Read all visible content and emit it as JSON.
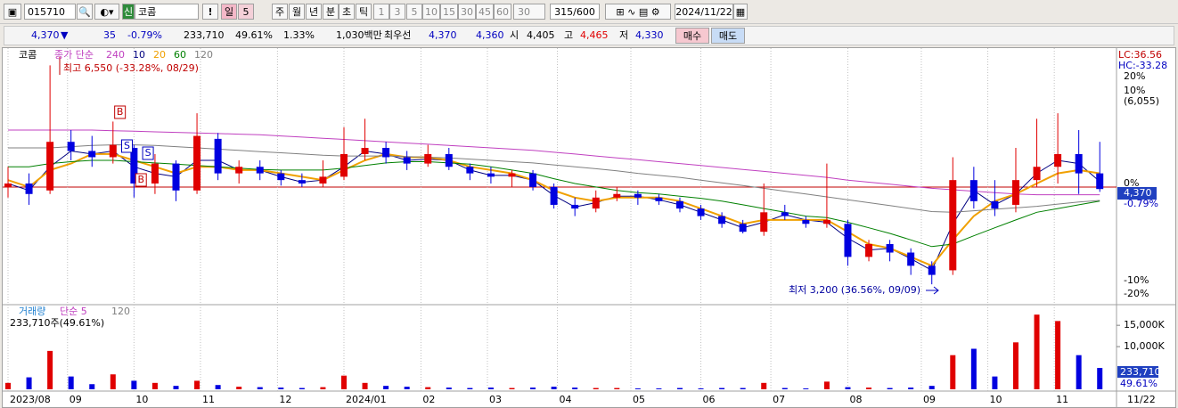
{
  "toolbar": {
    "code": "015710",
    "market": "신",
    "name": "코콤",
    "alert": "!",
    "periods": [
      "일",
      "5",
      "주",
      "월",
      "년",
      "분",
      "초",
      "틱"
    ],
    "intervals": [
      "1",
      "3",
      "5",
      "10",
      "15",
      "30",
      "45",
      "60"
    ],
    "interval_select": "30",
    "count": "315/600",
    "date": "2024/11/22"
  },
  "quote": {
    "price": "4,370",
    "arrow": "▼",
    "change": "35",
    "change_pct": "-0.79%",
    "volume": "233,710",
    "volume_ratio": "49.61%",
    "turnover": "1.33%",
    "amount": "1,030백만",
    "best_label": "최우선",
    "best_ask": "4,370",
    "best_bid": "4,360",
    "open_label": "시",
    "open": "4,405",
    "high_label": "고",
    "high": "4,465",
    "low_label": "저",
    "low": "4,330",
    "buy": "매수",
    "sell": "매도"
  },
  "chart_data": [
    {
      "type": "candlestick",
      "name": "코콤",
      "legend_title": "종가 단순",
      "up_color": "#e00000",
      "down_color": "#0000e0",
      "ylim": [
        3020,
        6850
      ],
      "log_scale": true,
      "xlim": [
        0,
        315
      ],
      "xticks": [
        {
          "value": 0,
          "label": "2023/08"
        },
        {
          "value": 17,
          "label": "09"
        },
        {
          "value": 36,
          "label": "10"
        },
        {
          "value": 55,
          "label": "11"
        },
        {
          "value": 77,
          "label": "12"
        },
        {
          "value": 96,
          "label": "2024/01"
        },
        {
          "value": 118,
          "label": "02"
        },
        {
          "value": 137,
          "label": "03"
        },
        {
          "value": 157,
          "label": "04"
        },
        {
          "value": 178,
          "label": "05"
        },
        {
          "value": 198,
          "label": "06"
        },
        {
          "value": 218,
          "label": "07"
        },
        {
          "value": 240,
          "label": "08"
        },
        {
          "value": 261,
          "label": "09"
        },
        {
          "value": 280,
          "label": "10"
        },
        {
          "value": 299,
          "label": "11"
        }
      ],
      "x_end_label": "11/22",
      "high_note": "최고 6,550 (-33.28%, 08/29)",
      "low_note": "최저 3,200 (36.56%, 09/09)",
      "lc": "LC:36.56",
      "hc": "HC:-33.28",
      "right_labels": [
        "20%",
        "10%",
        "(6,055)",
        "0%",
        "4,370",
        "-0.79%",
        "-10%",
        "-20%"
      ],
      "signals": [
        {
          "label": "B",
          "x": 32
        },
        {
          "label": "S",
          "x": 34
        },
        {
          "label": "S",
          "x": 40
        },
        {
          "label": "B",
          "x": 38
        }
      ],
      "x": [
        0,
        6,
        12,
        18,
        24,
        30,
        36,
        42,
        48,
        54,
        60,
        66,
        72,
        78,
        84,
        90,
        96,
        102,
        108,
        114,
        120,
        126,
        132,
        138,
        144,
        150,
        156,
        162,
        168,
        174,
        180,
        186,
        192,
        198,
        204,
        210,
        216,
        222,
        228,
        234,
        240,
        246,
        252,
        258,
        264,
        270,
        276,
        282,
        288,
        294,
        300,
        306,
        312
      ],
      "open": [
        4400,
        4450,
        4350,
        5100,
        4950,
        4850,
        5000,
        4450,
        4750,
        4350,
        5150,
        4600,
        4700,
        4600,
        4500,
        4450,
        4550,
        4900,
        5000,
        4850,
        4750,
        4900,
        4700,
        4600,
        4550,
        4600,
        4400,
        4150,
        4100,
        4250,
        4300,
        4250,
        4200,
        4100,
        4000,
        3900,
        3800,
        4050,
        3950,
        3900,
        3900,
        3500,
        3650,
        3550,
        3400,
        3350,
        4500,
        4200,
        4150,
        4500,
        4700,
        4900,
        4600
      ],
      "high": [
        4700,
        4600,
        6550,
        5300,
        5200,
        5450,
        5050,
        4900,
        4800,
        5600,
        5250,
        4800,
        4800,
        4650,
        4600,
        4800,
        5350,
        5500,
        5100,
        4950,
        5050,
        5000,
        4750,
        4700,
        4650,
        4650,
        4450,
        4250,
        4350,
        4400,
        4350,
        4300,
        4250,
        4150,
        4050,
        3950,
        4450,
        4150,
        4000,
        4750,
        3950,
        3700,
        3700,
        3600,
        3450,
        4850,
        4700,
        4500,
        5000,
        5500,
        5600,
        5300,
        5100
      ],
      "low": [
        4250,
        4150,
        4300,
        4800,
        4700,
        4750,
        4250,
        4300,
        4200,
        4300,
        4500,
        4450,
        4500,
        4420,
        4400,
        4400,
        4500,
        4800,
        4750,
        4650,
        4700,
        4650,
        4500,
        4450,
        4400,
        4350,
        4100,
        4000,
        4050,
        4200,
        4150,
        4150,
        4050,
        3950,
        3850,
        3780,
        3750,
        3950,
        3850,
        3850,
        3400,
        3450,
        3450,
        3300,
        3200,
        3300,
        4100,
        4000,
        4050,
        4400,
        4450,
        4300,
        4330
      ],
      "close": [
        4450,
        4300,
        5100,
        4950,
        4850,
        5050,
        4450,
        4750,
        4350,
        5200,
        4600,
        4700,
        4600,
        4500,
        4450,
        4550,
        4900,
        5000,
        4850,
        4750,
        4900,
        4700,
        4600,
        4550,
        4600,
        4400,
        4150,
        4100,
        4250,
        4300,
        4250,
        4200,
        4100,
        4000,
        3900,
        3800,
        4050,
        4000,
        3900,
        3950,
        3500,
        3650,
        3550,
        3400,
        3300,
        4500,
        4200,
        4100,
        4500,
        4700,
        4900,
        4600,
        4370
      ],
      "series": [
        {
          "name": "240",
          "color": "#c040c0",
          "values": [
            5300,
            5300,
            5300,
            5300,
            5300,
            5290,
            5280,
            5270,
            5260,
            5250,
            5240,
            5230,
            5220,
            5200,
            5180,
            5160,
            5140,
            5120,
            5100,
            5080,
            5060,
            5040,
            5020,
            5000,
            4980,
            4960,
            4930,
            4900,
            4870,
            4840,
            4810,
            4780,
            4750,
            4720,
            4690,
            4660,
            4630,
            4600,
            4570,
            4540,
            4500,
            4470,
            4440,
            4410,
            4380,
            4360,
            4340,
            4320,
            4300,
            4290,
            4290,
            4290,
            4290
          ]
        },
        {
          "name": "10",
          "color": "#000080",
          "values": [
            4450,
            4350,
            4700,
            4950,
            4900,
            4950,
            4700,
            4600,
            4550,
            4800,
            4800,
            4650,
            4650,
            4550,
            4470,
            4500,
            4700,
            4950,
            4900,
            4800,
            4820,
            4800,
            4650,
            4570,
            4570,
            4500,
            4280,
            4120,
            4180,
            4270,
            4270,
            4220,
            4150,
            4050,
            3950,
            3850,
            3920,
            4020,
            3950,
            3920,
            3720,
            3580,
            3600,
            3480,
            3350,
            3900,
            4350,
            4150,
            4300,
            4600,
            4800,
            4750,
            4480
          ]
        },
        {
          "name": "20",
          "color": "#f0a000",
          "values": [
            4500,
            4400,
            4650,
            4750,
            4900,
            4900,
            4800,
            4700,
            4600,
            4700,
            4700,
            4650,
            4650,
            4600,
            4550,
            4500,
            4650,
            4800,
            4900,
            4850,
            4850,
            4800,
            4700,
            4650,
            4600,
            4500,
            4350,
            4250,
            4200,
            4250,
            4250,
            4250,
            4200,
            4100,
            4000,
            3900,
            3950,
            3950,
            3950,
            3950,
            3800,
            3650,
            3600,
            3500,
            3400,
            3700,
            4000,
            4200,
            4300,
            4450,
            4600,
            4650,
            4600
          ]
        },
        {
          "name": "60",
          "color": "#008000",
          "values": [
            4700,
            4700,
            4750,
            4780,
            4800,
            4800,
            4780,
            4760,
            4740,
            4720,
            4700,
            4680,
            4660,
            4650,
            4650,
            4650,
            4680,
            4720,
            4760,
            4780,
            4780,
            4760,
            4740,
            4700,
            4650,
            4600,
            4520,
            4450,
            4400,
            4350,
            4320,
            4300,
            4270,
            4240,
            4200,
            4150,
            4100,
            4050,
            4000,
            3980,
            3920,
            3850,
            3780,
            3700,
            3620,
            3650,
            3750,
            3850,
            3950,
            4050,
            4100,
            4150,
            4200
          ]
        },
        {
          "name": "120",
          "color": "#808080",
          "values": [
            5000,
            5000,
            5000,
            5020,
            5040,
            5050,
            5050,
            5040,
            5020,
            5000,
            4980,
            4960,
            4940,
            4920,
            4900,
            4880,
            4870,
            4870,
            4870,
            4860,
            4850,
            4840,
            4820,
            4800,
            4780,
            4760,
            4730,
            4700,
            4670,
            4640,
            4600,
            4570,
            4540,
            4500,
            4460,
            4420,
            4380,
            4340,
            4300,
            4260,
            4220,
            4180,
            4140,
            4100,
            4060,
            4050,
            4070,
            4090,
            4110,
            4130,
            4160,
            4190,
            4210
          ]
        }
      ]
    },
    {
      "type": "bar",
      "name": "거래량",
      "legend_title": "단순 5",
      "legend_extra": "120",
      "subtitle": "233,710주(49.61%)",
      "ylim": [
        0,
        19000
      ],
      "xlim": [
        0,
        315
      ],
      "yticks": [
        {
          "value": 15000,
          "label": "15,000K"
        },
        {
          "value": 10000,
          "label": "10,000K"
        }
      ],
      "right_labels": [
        "233,710",
        "49.61%"
      ],
      "x": [
        0,
        6,
        12,
        18,
        24,
        30,
        36,
        42,
        48,
        54,
        60,
        66,
        72,
        78,
        84,
        90,
        96,
        102,
        108,
        114,
        120,
        126,
        132,
        138,
        144,
        150,
        156,
        162,
        168,
        174,
        180,
        186,
        192,
        198,
        204,
        210,
        216,
        222,
        228,
        234,
        240,
        246,
        252,
        258,
        264,
        270,
        276,
        282,
        288,
        294,
        300,
        306,
        312
      ],
      "values": [
        1500,
        2800,
        9000,
        3000,
        1200,
        3500,
        2000,
        1500,
        800,
        2000,
        1000,
        600,
        500,
        400,
        300,
        500,
        3200,
        1500,
        800,
        600,
        500,
        400,
        300,
        400,
        300,
        400,
        600,
        400,
        300,
        300,
        200,
        200,
        300,
        200,
        300,
        300,
        1500,
        300,
        200,
        1800,
        500,
        400,
        300,
        400,
        800,
        8000,
        9500,
        3000,
        11000,
        17500,
        16000,
        8000,
        5000
      ]
    }
  ]
}
